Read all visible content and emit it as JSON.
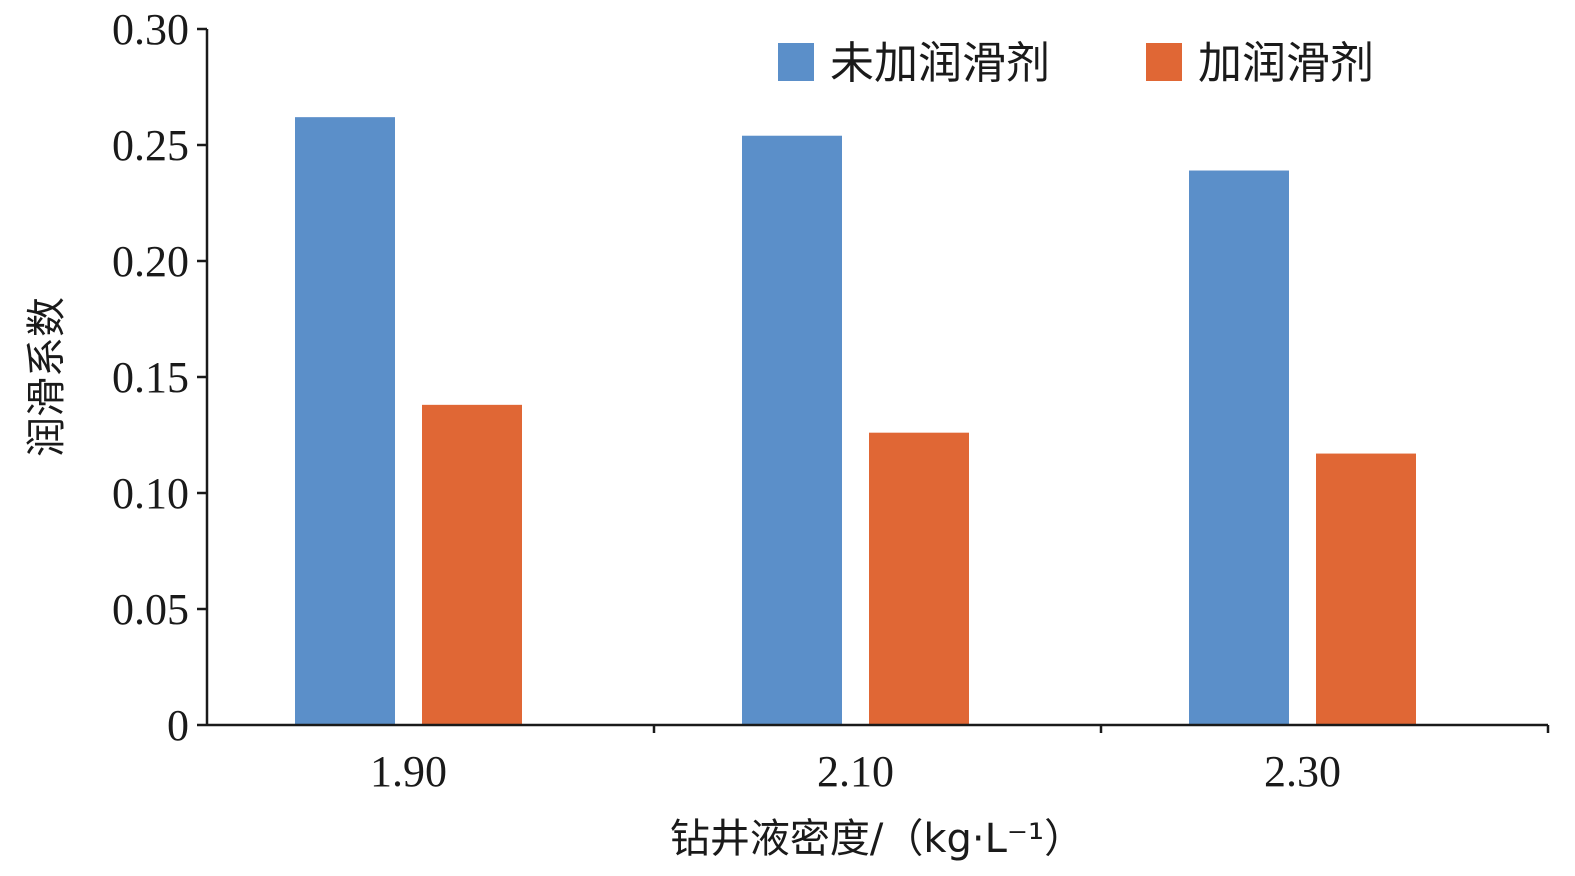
{
  "chart_data": {
    "type": "bar",
    "title": "",
    "xlabel": "钻井液密度/（kg·L⁻¹）",
    "ylabel": "润滑系数",
    "categories": [
      "1.90",
      "2.10",
      "2.30"
    ],
    "series": [
      {
        "name": "未加润滑剂",
        "color": "#5b8fc9",
        "values": [
          0.262,
          0.254,
          0.239
        ]
      },
      {
        "name": "加润滑剂",
        "color": "#e06735",
        "values": [
          0.138,
          0.126,
          0.117
        ]
      }
    ],
    "ylim": [
      0,
      0.3
    ],
    "yticks": [
      "0",
      "0.05",
      "0.10",
      "0.15",
      "0.20",
      "0.25",
      "0.30"
    ],
    "ytick_values": [
      0,
      0.05,
      0.1,
      0.15,
      0.2,
      0.25,
      0.3
    ],
    "grid": false,
    "legend_position": "top-right"
  }
}
